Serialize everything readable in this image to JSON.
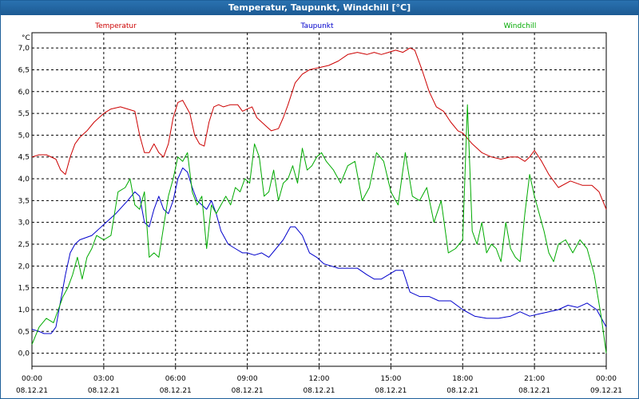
{
  "window": {
    "title": "Temperatur, Taupunkt, Windchill [°C]"
  },
  "chart_data": {
    "type": "line",
    "title": "Temperatur, Taupunkt, Windchill [°C]",
    "ylabel": "°C",
    "ylim": [
      -0.3,
      7.35
    ],
    "xlim_hours": [
      0,
      24
    ],
    "grid": true,
    "y_ticks": [
      "0,0",
      "0,5",
      "1,0",
      "1,5",
      "2,0",
      "2,5",
      "3,0",
      "3,5",
      "4,0",
      "4,5",
      "5,0",
      "5,5",
      "6,0",
      "6,5",
      "7,0"
    ],
    "x_ticks": [
      {
        "time": "00:00",
        "date": "08.12.21"
      },
      {
        "time": "03:00",
        "date": "08.12.21"
      },
      {
        "time": "06:00",
        "date": "08.12.21"
      },
      {
        "time": "09:00",
        "date": "08.12.21"
      },
      {
        "time": "12:00",
        "date": "08.12.21"
      },
      {
        "time": "15:00",
        "date": "08.12.21"
      },
      {
        "time": "18:00",
        "date": "08.12.21"
      },
      {
        "time": "21:00",
        "date": "08.12.21"
      },
      {
        "time": "00:00",
        "date": "09.12.21"
      }
    ],
    "series": [
      {
        "name": "Temperatur",
        "color": "#cc0000",
        "x": [
          0,
          0.3,
          0.6,
          1.0,
          1.2,
          1.4,
          1.6,
          1.8,
          2.0,
          2.3,
          2.6,
          3.0,
          3.3,
          3.7,
          4.0,
          4.3,
          4.5,
          4.7,
          4.9,
          5.1,
          5.3,
          5.5,
          5.7,
          5.9,
          6.1,
          6.3,
          6.6,
          6.8,
          7.0,
          7.2,
          7.4,
          7.6,
          7.8,
          8.0,
          8.3,
          8.6,
          8.8,
          9.0,
          9.2,
          9.4,
          9.6,
          9.8,
          10.0,
          10.3,
          10.5,
          10.7,
          11.0,
          11.3,
          11.6,
          12.0,
          12.4,
          12.8,
          13.2,
          13.6,
          14.0,
          14.3,
          14.6,
          14.9,
          15.2,
          15.5,
          15.8,
          16.0,
          16.3,
          16.6,
          16.9,
          17.2,
          17.5,
          17.8,
          18.0,
          18.4,
          18.8,
          19.2,
          19.6,
          20.0,
          20.3,
          20.6,
          20.8,
          21.0,
          21.3,
          21.6,
          22.0,
          22.5,
          23.0,
          23.4,
          23.7,
          24.0
        ],
        "values": [
          4.5,
          4.55,
          4.55,
          4.45,
          4.2,
          4.1,
          4.5,
          4.8,
          4.95,
          5.1,
          5.3,
          5.5,
          5.6,
          5.65,
          5.6,
          5.55,
          5.0,
          4.6,
          4.6,
          4.8,
          4.6,
          4.5,
          4.8,
          5.4,
          5.75,
          5.8,
          5.5,
          5.0,
          4.8,
          4.75,
          5.3,
          5.65,
          5.7,
          5.65,
          5.7,
          5.7,
          5.55,
          5.6,
          5.65,
          5.4,
          5.3,
          5.2,
          5.1,
          5.15,
          5.4,
          5.7,
          6.2,
          6.4,
          6.5,
          6.55,
          6.6,
          6.7,
          6.85,
          6.9,
          6.85,
          6.9,
          6.85,
          6.9,
          6.95,
          6.9,
          7.0,
          6.95,
          6.5,
          6.0,
          5.65,
          5.55,
          5.3,
          5.1,
          5.05,
          4.8,
          4.6,
          4.5,
          4.45,
          4.5,
          4.5,
          4.4,
          4.5,
          4.65,
          4.4,
          4.1,
          3.8,
          3.95,
          3.85,
          3.85,
          3.7,
          3.3
        ]
      },
      {
        "name": "Taupunkt",
        "color": "#0000cc",
        "x": [
          0,
          0.3,
          0.5,
          0.8,
          1.0,
          1.2,
          1.4,
          1.6,
          1.8,
          2.0,
          2.5,
          3.0,
          3.5,
          4.0,
          4.3,
          4.5,
          4.7,
          4.9,
          5.1,
          5.3,
          5.5,
          5.7,
          5.9,
          6.1,
          6.3,
          6.5,
          6.7,
          6.9,
          7.1,
          7.3,
          7.5,
          7.7,
          7.9,
          8.2,
          8.5,
          8.8,
          9.0,
          9.3,
          9.6,
          9.9,
          10.2,
          10.5,
          10.8,
          11.0,
          11.3,
          11.6,
          11.9,
          12.2,
          12.5,
          12.8,
          13.2,
          13.6,
          14.0,
          14.3,
          14.6,
          14.9,
          15.2,
          15.5,
          15.8,
          16.2,
          16.6,
          17.0,
          17.5,
          18.0,
          18.5,
          19.0,
          19.5,
          20.0,
          20.4,
          20.8,
          21.2,
          21.6,
          22.0,
          22.4,
          22.8,
          23.2,
          23.6,
          24.0
        ],
        "values": [
          0.55,
          0.5,
          0.45,
          0.45,
          0.6,
          1.2,
          1.8,
          2.3,
          2.5,
          2.6,
          2.7,
          2.95,
          3.2,
          3.5,
          3.7,
          3.6,
          3.0,
          2.9,
          3.3,
          3.6,
          3.3,
          3.2,
          3.5,
          4.0,
          4.25,
          4.15,
          3.8,
          3.5,
          3.4,
          3.3,
          3.5,
          3.2,
          2.8,
          2.5,
          2.4,
          2.3,
          2.3,
          2.25,
          2.3,
          2.2,
          2.4,
          2.6,
          2.9,
          2.9,
          2.7,
          2.3,
          2.2,
          2.05,
          2.0,
          1.95,
          1.95,
          1.95,
          1.8,
          1.7,
          1.7,
          1.8,
          1.9,
          1.9,
          1.4,
          1.3,
          1.3,
          1.2,
          1.2,
          1.0,
          0.85,
          0.8,
          0.8,
          0.85,
          0.95,
          0.85,
          0.9,
          0.95,
          1.0,
          1.1,
          1.05,
          1.15,
          1.0,
          0.6
        ]
      },
      {
        "name": "Windchill",
        "color": "#00aa00",
        "x": [
          0,
          0.3,
          0.6,
          0.9,
          1.1,
          1.3,
          1.5,
          1.7,
          1.9,
          2.1,
          2.3,
          2.5,
          2.7,
          3.0,
          3.3,
          3.6,
          3.9,
          4.1,
          4.3,
          4.5,
          4.7,
          4.9,
          5.1,
          5.3,
          5.5,
          5.7,
          5.9,
          6.1,
          6.3,
          6.5,
          6.7,
          6.9,
          7.1,
          7.3,
          7.5,
          7.7,
          7.9,
          8.1,
          8.3,
          8.5,
          8.7,
          8.9,
          9.1,
          9.3,
          9.5,
          9.7,
          9.9,
          10.1,
          10.3,
          10.5,
          10.7,
          10.9,
          11.1,
          11.3,
          11.5,
          11.7,
          11.9,
          12.1,
          12.3,
          12.6,
          12.9,
          13.2,
          13.5,
          13.8,
          14.1,
          14.4,
          14.7,
          15.0,
          15.3,
          15.6,
          15.9,
          16.2,
          16.5,
          16.8,
          17.1,
          17.4,
          17.7,
          18.0,
          18.2,
          18.4,
          18.6,
          18.8,
          19.0,
          19.2,
          19.4,
          19.6,
          19.8,
          20.0,
          20.2,
          20.4,
          20.6,
          20.8,
          21.0,
          21.2,
          21.4,
          21.6,
          21.8,
          22.0,
          22.3,
          22.6,
          22.9,
          23.2,
          23.5,
          23.8,
          24.0
        ],
        "values": [
          0.2,
          0.6,
          0.8,
          0.7,
          1.0,
          1.3,
          1.5,
          1.8,
          2.2,
          1.7,
          2.2,
          2.4,
          2.7,
          2.6,
          2.7,
          3.7,
          3.8,
          4.0,
          3.4,
          3.3,
          3.7,
          2.2,
          2.3,
          2.2,
          2.9,
          3.6,
          4.0,
          4.5,
          4.4,
          4.6,
          3.7,
          3.4,
          3.6,
          2.4,
          3.4,
          3.2,
          3.4,
          3.6,
          3.4,
          3.8,
          3.7,
          4.0,
          3.9,
          4.8,
          4.5,
          3.6,
          3.7,
          4.2,
          3.5,
          3.9,
          4.0,
          4.3,
          3.9,
          4.7,
          4.2,
          4.3,
          4.5,
          4.6,
          4.4,
          4.2,
          3.9,
          4.3,
          4.4,
          3.5,
          3.8,
          4.6,
          4.4,
          3.7,
          3.4,
          4.6,
          3.6,
          3.5,
          3.8,
          3.0,
          3.5,
          2.3,
          2.4,
          2.6,
          5.7,
          2.8,
          2.5,
          3.0,
          2.3,
          2.5,
          2.4,
          2.1,
          3.0,
          2.4,
          2.2,
          2.1,
          3.2,
          4.1,
          3.6,
          3.2,
          2.8,
          2.3,
          2.1,
          2.5,
          2.6,
          2.3,
          2.6,
          2.4,
          1.8,
          0.8,
          0.0
        ]
      }
    ]
  }
}
